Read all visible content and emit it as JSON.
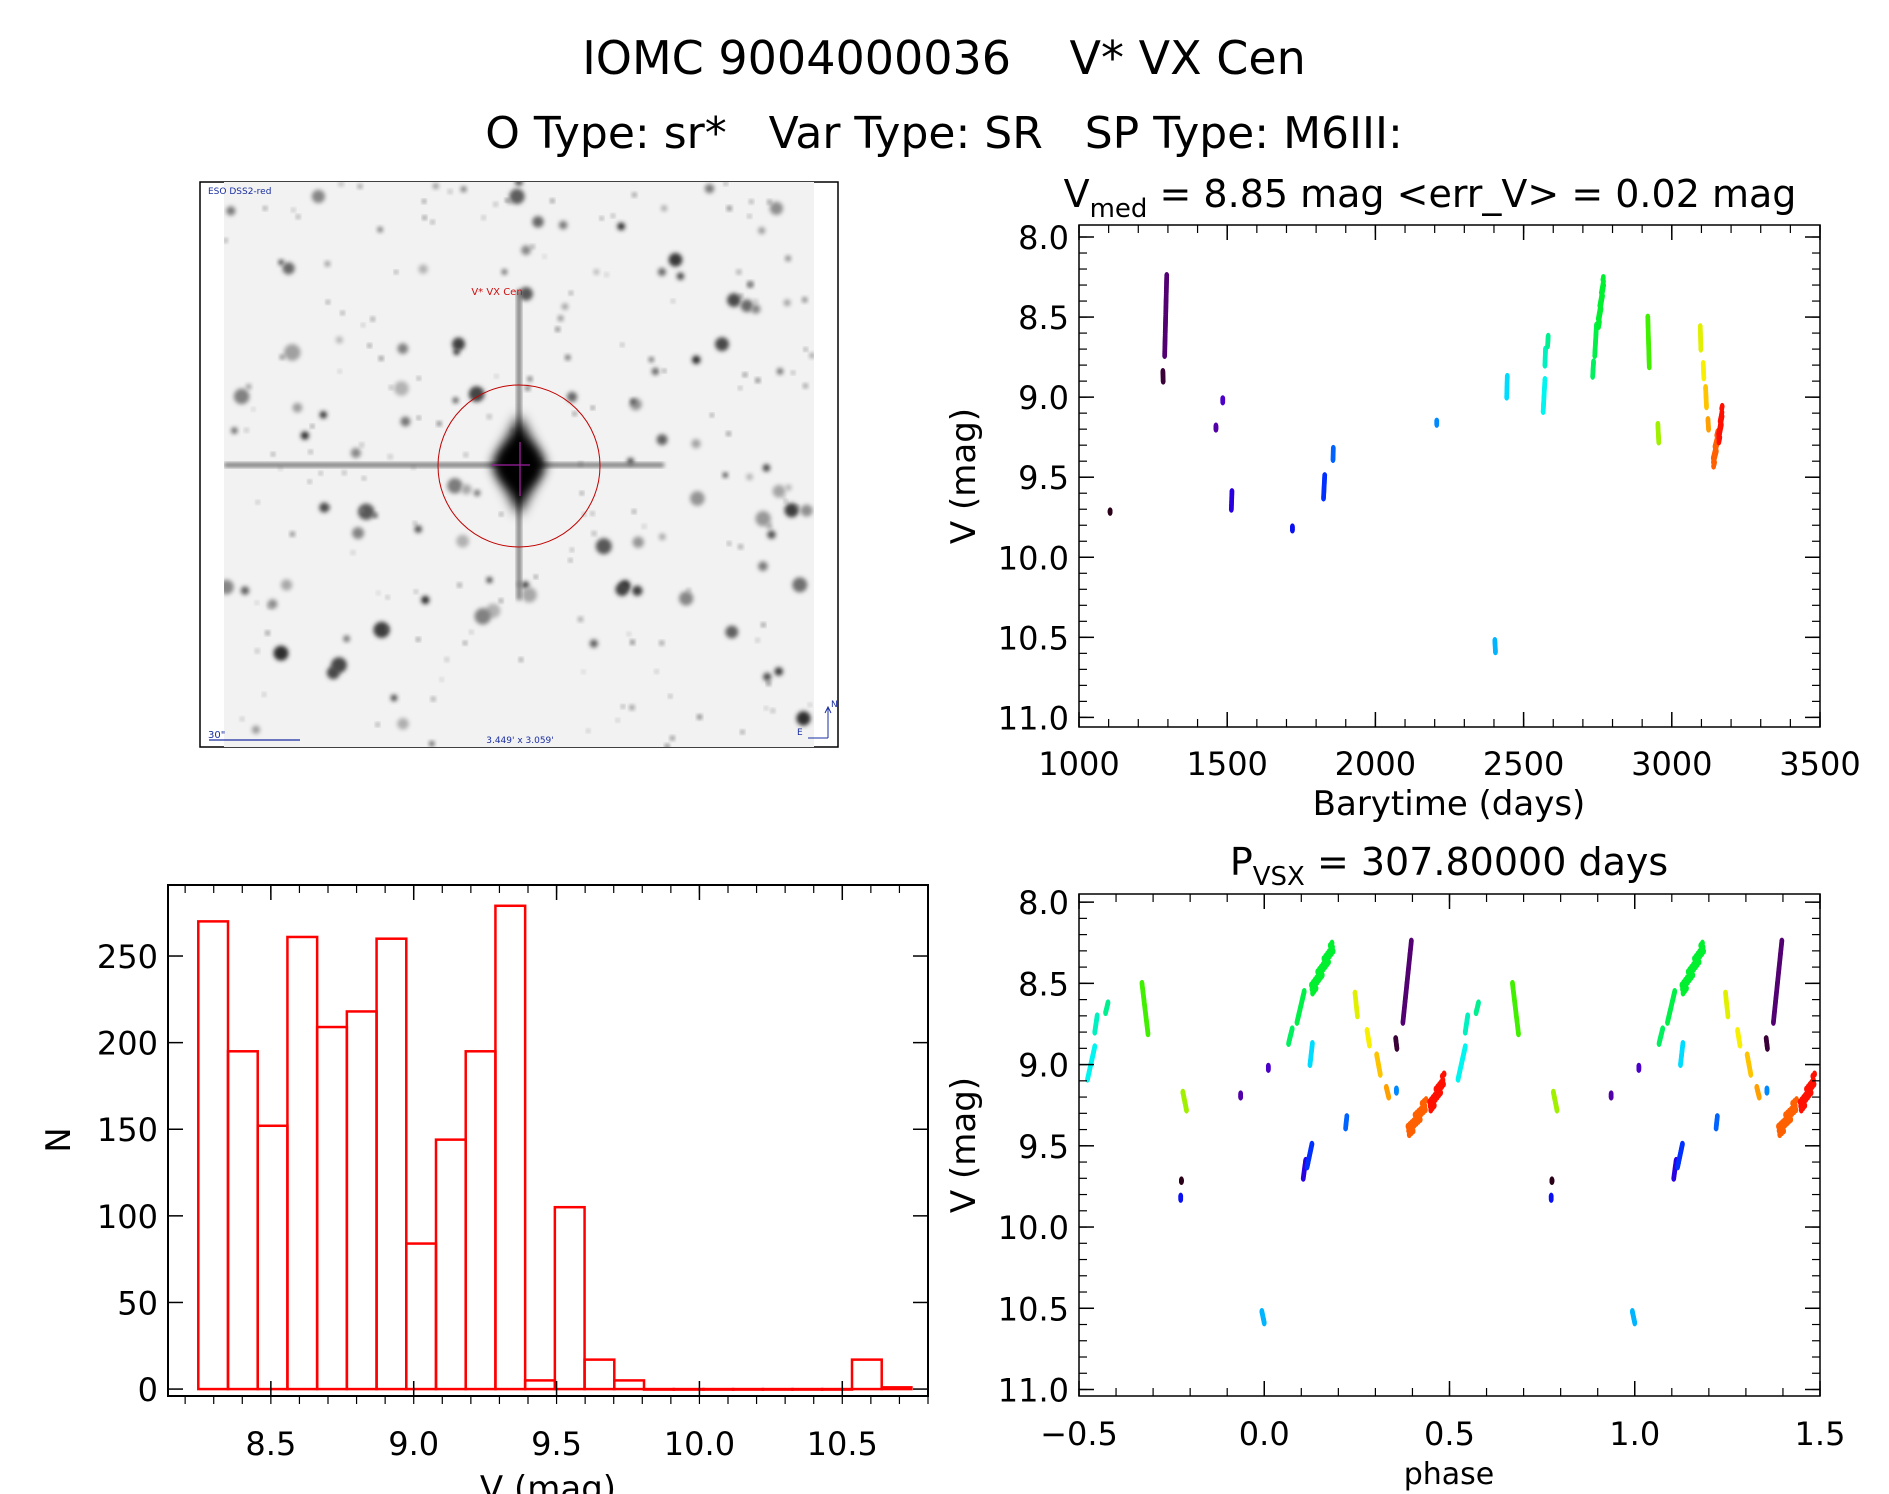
{
  "header": {
    "title_line1": "IOMC 9004000036    V* VX Cen",
    "title_line2": "O Type: sr*   Var Type: SR   SP Type: M6III:"
  },
  "sky_image": {
    "survey_label": "ESO DSS2-red",
    "target_label": "V* VX Cen",
    "scale_label": "30\"",
    "fov_label": "3.449' x 3.059'",
    "north_label": "N",
    "east_label": "E"
  },
  "chart_data": [
    {
      "id": "histogram",
      "type": "bar",
      "title": "",
      "xlabel": "V (mag)",
      "ylabel": "N",
      "xlim": [
        8.14,
        10.8
      ],
      "ylim": [
        -4,
        291
      ],
      "bin_width": 0.104,
      "bin_start": 8.246,
      "values": [
        270,
        195,
        152,
        261,
        209,
        218,
        260,
        84,
        144,
        195,
        279,
        5,
        105,
        17,
        5,
        0,
        0,
        0,
        0,
        0,
        0,
        0,
        17,
        1
      ],
      "xticks": [
        "8.5",
        "9.0",
        "9.5",
        "10.0",
        "10.5"
      ],
      "yticks": [
        "0",
        "50",
        "100",
        "150",
        "200",
        "250"
      ],
      "color": "#ff0000"
    },
    {
      "id": "light-curve",
      "type": "scatter",
      "title_main": "V",
      "title_sub": "med",
      "title_rest": " = 8.85 mag <err_V> = 0.02 mag",
      "xlabel": "Barytime (days)",
      "ylabel": "V (mag)",
      "xlim": [
        1000,
        3500
      ],
      "ylim": [
        7.925,
        11.06
      ],
      "xticks": [
        "1000",
        "1500",
        "2000",
        "2500",
        "3000",
        "3500"
      ],
      "yticks": [
        "8.0",
        "8.5",
        "9.0",
        "9.5",
        "10.0",
        "10.5",
        "11.0"
      ],
      "clusters": [
        {
          "t": [
            1105,
            1105
          ],
          "v": [
            9.71,
            9.72
          ],
          "color": "#2a0018"
        },
        {
          "t": [
            1283,
            1284
          ],
          "v": [
            8.84,
            8.9
          ],
          "color": "#3a0038"
        },
        {
          "t": [
            1289,
            1296
          ],
          "v": [
            8.74,
            8.24
          ],
          "color": "#520072"
        },
        {
          "t": [
            1462,
            1462
          ],
          "v": [
            9.18,
            9.2
          ],
          "color": "#5200a8"
        },
        {
          "t": [
            1485,
            1485
          ],
          "v": [
            9.01,
            9.03
          ],
          "color": "#4a00c8"
        },
        {
          "t": [
            1514,
            1516
          ],
          "v": [
            9.7,
            9.59
          ],
          "color": "#2a00e0"
        },
        {
          "t": [
            1720,
            1720
          ],
          "v": [
            9.81,
            9.83
          ],
          "color": "#0a10f0"
        },
        {
          "t": [
            1825,
            1829
          ],
          "v": [
            9.63,
            9.49
          ],
          "color": "#0030ff"
        },
        {
          "t": [
            1857,
            1858
          ],
          "v": [
            9.39,
            9.32
          ],
          "color": "#0062ff"
        },
        {
          "t": [
            2207,
            2207
          ],
          "v": [
            9.15,
            9.17
          ],
          "color": "#0088ff"
        },
        {
          "t": [
            2403,
            2405
          ],
          "v": [
            10.52,
            10.59
          ],
          "color": "#00b4ff"
        },
        {
          "t": [
            2443,
            2445
          ],
          "v": [
            9.0,
            8.87
          ],
          "color": "#00dcff"
        },
        {
          "t": [
            2566,
            2572
          ],
          "v": [
            9.09,
            8.89
          ],
          "color": "#00f4f0"
        },
        {
          "t": [
            2572,
            2574
          ],
          "v": [
            8.8,
            8.7
          ],
          "color": "#00f0c0"
        },
        {
          "t": [
            2581,
            2583
          ],
          "v": [
            8.68,
            8.62
          ],
          "color": "#00f090"
        },
        {
          "t": [
            2733,
            2736
          ],
          "v": [
            8.87,
            8.78
          ],
          "color": "#00f060"
        },
        {
          "t": [
            2740,
            2746
          ],
          "v": [
            8.74,
            8.55
          ],
          "color": "#00f048"
        },
        {
          "t": [
            2752,
            2770
          ],
          "v": [
            8.55,
            8.27
          ],
          "color": "#00f030"
        },
        {
          "t": [
            2919,
            2924
          ],
          "v": [
            8.5,
            8.81
          ],
          "color": "#40f000"
        },
        {
          "t": [
            2953,
            2956
          ],
          "v": [
            9.17,
            9.28
          ],
          "color": "#a0f000"
        },
        {
          "t": [
            3096,
            3098
          ],
          "v": [
            8.56,
            8.7
          ],
          "color": "#e0f000"
        },
        {
          "t": [
            3106,
            3108
          ],
          "v": [
            8.79,
            8.88
          ],
          "color": "#f8f000"
        },
        {
          "t": [
            3114,
            3117
          ],
          "v": [
            8.94,
            9.06
          ],
          "color": "#ffc400"
        },
        {
          "t": [
            3122,
            3124
          ],
          "v": [
            9.14,
            9.2
          ],
          "color": "#ffa000"
        },
        {
          "t": [
            3140,
            3155
          ],
          "v": [
            9.42,
            9.24
          ],
          "color": "#ff6000"
        },
        {
          "t": [
            3158,
            3170
          ],
          "v": [
            9.27,
            9.09
          ],
          "color": "#ff1000"
        }
      ]
    },
    {
      "id": "phase-curve",
      "type": "scatter",
      "title_main": "P",
      "title_sub": "VSX",
      "title_rest": " = 307.80000 days",
      "period": 307.8,
      "epoch": 2405,
      "xlabel": "phase",
      "ylabel": "V (mag)",
      "xlim": [
        -0.5,
        1.5
      ],
      "ylim": [
        7.95,
        11.04
      ],
      "xticks": [
        "−0.5",
        "0.0",
        "0.5",
        "1.0",
        "1.5"
      ],
      "yticks": [
        "8.0",
        "8.5",
        "9.0",
        "9.5",
        "10.0",
        "10.5",
        "11.0"
      ]
    }
  ]
}
